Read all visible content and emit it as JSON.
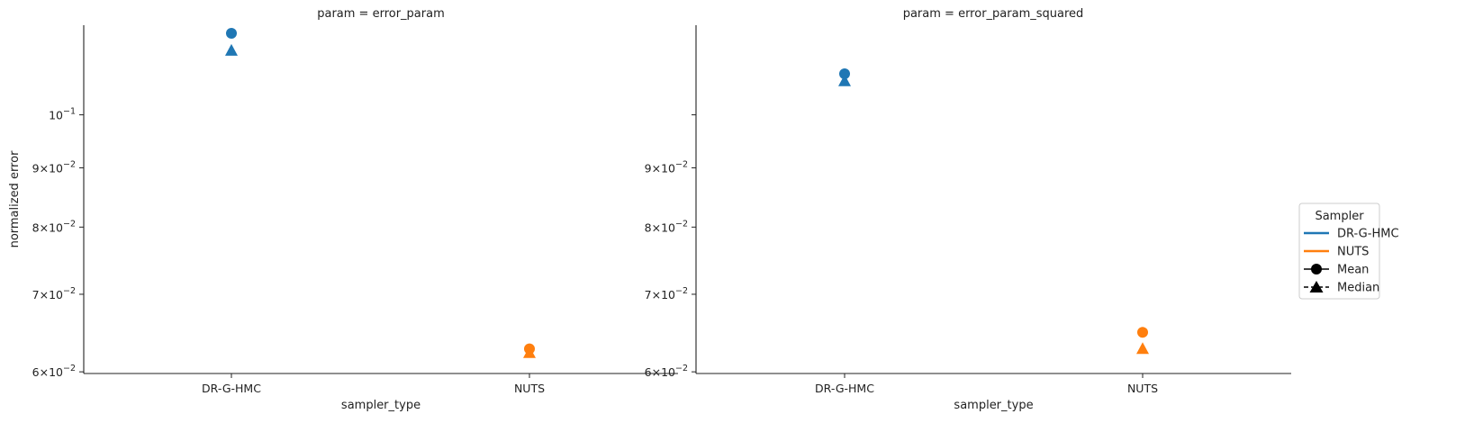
{
  "chart_data": [
    {
      "type": "scatter",
      "title": "param = error_param",
      "xlabel": "sampler_type",
      "ylabel": "normalized error",
      "yscale": "log",
      "ylim": [
        0.0598,
        0.1195
      ],
      "categories": [
        "DR-G-HMC",
        "NUTS"
      ],
      "yticks": [
        {
          "value": 0.06,
          "base": "6",
          "exp": "10",
          "pow": "−2",
          "mult": true
        },
        {
          "value": 0.07,
          "base": "7",
          "exp": "10",
          "pow": "−2",
          "mult": true
        },
        {
          "value": 0.08,
          "base": "8",
          "exp": "10",
          "pow": "−2",
          "mult": true
        },
        {
          "value": 0.09,
          "base": "9",
          "exp": "10",
          "pow": "−2",
          "mult": true
        },
        {
          "value": 0.1,
          "base": "",
          "exp": "10",
          "pow": "−1",
          "mult": false
        }
      ],
      "series": [
        {
          "sampler": "DR-G-HMC",
          "color": "#1f77b4",
          "mean": 0.1176,
          "median": 0.1138
        },
        {
          "sampler": "NUTS",
          "color": "#ff7f0e",
          "mean": 0.0628,
          "median": 0.0624
        }
      ],
      "grid": false
    },
    {
      "type": "scatter",
      "title": "param = error_param_squared",
      "xlabel": "sampler_type",
      "ylabel": "",
      "yscale": "log",
      "ylim": [
        0.0598,
        0.1195
      ],
      "categories": [
        "DR-G-HMC",
        "NUTS"
      ],
      "yticks": [
        {
          "value": 0.06,
          "base": "6",
          "exp": "10",
          "pow": "−2",
          "mult": true
        },
        {
          "value": 0.07,
          "base": "7",
          "exp": "10",
          "pow": "−2",
          "mult": true
        },
        {
          "value": 0.08,
          "base": "8",
          "exp": "10",
          "pow": "−2",
          "mult": true
        },
        {
          "value": 0.09,
          "base": "9",
          "exp": "10",
          "pow": "−2",
          "mult": true
        },
        {
          "value": 0.1,
          "base": "",
          "exp": "",
          "pow": "",
          "mult": false
        }
      ],
      "series": [
        {
          "sampler": "DR-G-HMC",
          "color": "#1f77b4",
          "mean": 0.1085,
          "median": 0.1071
        },
        {
          "sampler": "NUTS",
          "color": "#ff7f0e",
          "mean": 0.0649,
          "median": 0.0629
        }
      ],
      "grid": false
    }
  ],
  "legend": {
    "title": "Sampler",
    "placement": "right",
    "entries": [
      {
        "label": "DR-G-HMC",
        "kind": "line",
        "color": "#1f77b4",
        "icon": "solid-line"
      },
      {
        "label": "NUTS",
        "kind": "line",
        "color": "#ff7f0e",
        "icon": "solid-line"
      },
      {
        "label": "Mean",
        "kind": "marker",
        "color": "#000000",
        "icon": "circle-marker"
      },
      {
        "label": "Median",
        "kind": "marker",
        "color": "#000000",
        "icon": "triangle-marker"
      }
    ]
  }
}
